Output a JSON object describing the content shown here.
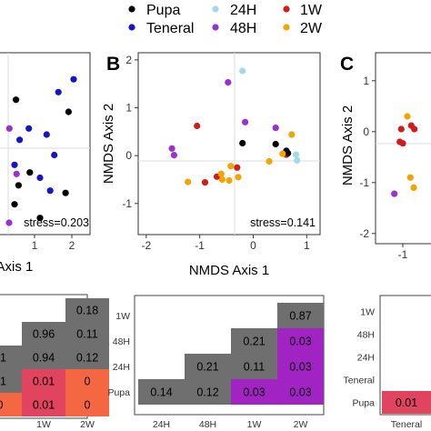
{
  "legend": {
    "placement": "top-center",
    "entries": [
      {
        "label": "Pupa",
        "color": "#000000"
      },
      {
        "label": "Teneral",
        "color": "#1515c8"
      },
      {
        "label": "24H",
        "color": "#a6d8ea"
      },
      {
        "label": "48H",
        "color": "#9b30d0"
      },
      {
        "label": "1W",
        "color": "#d01c1c"
      },
      {
        "label": "2W",
        "color": "#f0a500"
      }
    ]
  },
  "panel_labels": {
    "a": "",
    "b": "B",
    "c": "C"
  },
  "chart_data": [
    {
      "type": "scatter",
      "panel": "A",
      "xlabel": "NMDS Axis 1",
      "ylabel": "",
      "xticks": [
        1,
        2
      ],
      "xlim": [
        0.3,
        2.1
      ],
      "ylim": [
        -1.2,
        1.2
      ],
      "stress_label": "stress=0.203",
      "points": [
        {
          "group": "Teneral",
          "x": 1.78,
          "y": 0.85
        },
        {
          "group": "Teneral",
          "x": 1.48,
          "y": 0.68
        },
        {
          "group": "Teneral",
          "x": 1.25,
          "y": 0.12
        },
        {
          "group": "Teneral",
          "x": 1.4,
          "y": -0.15
        },
        {
          "group": "Teneral",
          "x": 0.9,
          "y": 0.2
        },
        {
          "group": "Teneral",
          "x": 0.72,
          "y": 0.05
        },
        {
          "group": "Teneral",
          "x": 1.12,
          "y": -0.45
        },
        {
          "group": "Teneral",
          "x": 0.62,
          "y": -0.28
        },
        {
          "group": "Teneral",
          "x": 1.32,
          "y": -0.62
        },
        {
          "group": "Pupa",
          "x": 1.68,
          "y": 0.42
        },
        {
          "group": "Pupa",
          "x": 1.62,
          "y": -0.65
        },
        {
          "group": "Pupa",
          "x": 1.12,
          "y": -0.98
        },
        {
          "group": "Pupa",
          "x": 0.62,
          "y": -0.8
        },
        {
          "group": "Pupa",
          "x": 0.7,
          "y": -0.55
        },
        {
          "group": "Pupa",
          "x": 0.92,
          "y": -0.38
        },
        {
          "group": "Pupa",
          "x": 0.65,
          "y": 0.58
        },
        {
          "group": "48H",
          "x": 0.52,
          "y": 0.2
        },
        {
          "group": "48H",
          "x": 0.66,
          "y": -0.4
        }
      ]
    },
    {
      "type": "scatter",
      "panel": "B",
      "xlabel": "NMDS Axis 1",
      "ylabel": "NMDS Axis 2",
      "xticks": [
        -2,
        -1,
        0,
        1
      ],
      "yticks": [
        -1,
        0,
        1,
        2
      ],
      "xlim": [
        -2.15,
        1.25
      ],
      "ylim": [
        -1.65,
        2.15
      ],
      "stress_label": "stress=0.141",
      "points": [
        {
          "group": "24H",
          "x": -0.2,
          "y": 1.77
        },
        {
          "group": "24H",
          "x": 0.82,
          "y": -0.1
        },
        {
          "group": "24H",
          "x": 0.8,
          "y": 0.02
        },
        {
          "group": "48H",
          "x": -0.47,
          "y": 1.53
        },
        {
          "group": "48H",
          "x": -0.15,
          "y": 0.7
        },
        {
          "group": "48H",
          "x": -1.52,
          "y": 0.15
        },
        {
          "group": "48H",
          "x": -1.48,
          "y": 0.01
        },
        {
          "group": "48H",
          "x": 0.42,
          "y": 0.58
        },
        {
          "group": "1W",
          "x": -1.05,
          "y": 0.62
        },
        {
          "group": "1W",
          "x": -0.3,
          "y": -0.25
        },
        {
          "group": "1W",
          "x": -0.68,
          "y": -0.44
        },
        {
          "group": "1W",
          "x": -0.9,
          "y": -0.56
        },
        {
          "group": "1W",
          "x": 0.62,
          "y": 0.02
        },
        {
          "group": "Pupa",
          "x": -0.2,
          "y": 0.26
        },
        {
          "group": "Pupa",
          "x": 0.42,
          "y": 0.24
        },
        {
          "group": "Pupa",
          "x": 0.62,
          "y": 0.1
        },
        {
          "group": "Pupa",
          "x": 0.65,
          "y": 0.05
        },
        {
          "group": "2W",
          "x": 0.72,
          "y": 0.44
        },
        {
          "group": "2W",
          "x": 0.55,
          "y": 0.04
        },
        {
          "group": "2W",
          "x": 0.3,
          "y": -0.12
        },
        {
          "group": "2W",
          "x": -0.42,
          "y": -0.22
        },
        {
          "group": "2W",
          "x": -0.6,
          "y": -0.38
        },
        {
          "group": "2W",
          "x": -0.58,
          "y": -0.5
        },
        {
          "group": "2W",
          "x": -0.28,
          "y": -0.45
        },
        {
          "group": "2W",
          "x": -0.45,
          "y": -0.52
        },
        {
          "group": "2W",
          "x": -1.22,
          "y": -0.55
        }
      ]
    },
    {
      "type": "scatter",
      "panel": "C",
      "xlabel": "",
      "ylabel": "NMDS Axis 2",
      "xticks": [
        -1
      ],
      "yticks": [
        -2,
        -1,
        0,
        1
      ],
      "xlim": [
        -1.9,
        0.2
      ],
      "ylim": [
        -2.2,
        1.55
      ],
      "points": [
        {
          "group": "48H",
          "x": -1.28,
          "y": -1.22
        },
        {
          "group": "1W",
          "x": -1.05,
          "y": 0.05
        },
        {
          "group": "1W",
          "x": -1.1,
          "y": -0.2
        },
        {
          "group": "1W",
          "x": -1.0,
          "y": -0.23
        },
        {
          "group": "1W",
          "x": -0.62,
          "y": 0.05
        },
        {
          "group": "1W",
          "x": -0.72,
          "y": 0.12
        },
        {
          "group": "2W",
          "x": -0.85,
          "y": 0.3
        },
        {
          "group": "2W",
          "x": -0.75,
          "y": -0.9
        },
        {
          "group": "2W",
          "x": -0.64,
          "y": -1.1
        }
      ]
    },
    {
      "type": "heatmap",
      "panel": "A-table",
      "x_labels": [
        "",
        "1W",
        "2W"
      ],
      "rows": [
        {
          "cells": [
            "",
            "",
            "0.18"
          ]
        },
        {
          "cells": [
            "",
            "0.96",
            "0.11"
          ]
        },
        {
          "cells": [
            "91",
            "0.94",
            "0.12"
          ]
        },
        {
          "cells": [
            "01",
            "0.01",
            "0"
          ]
        },
        {
          "cells": [
            "0",
            "0.01",
            "0"
          ]
        }
      ]
    },
    {
      "type": "heatmap",
      "panel": "B-table",
      "y_labels": [
        "1W",
        "48H",
        "24H",
        "Pupa"
      ],
      "x_labels": [
        "24H",
        "48H",
        "1W",
        "2W"
      ],
      "rows": [
        {
          "cells": [
            "",
            "",
            "",
            "0.87"
          ]
        },
        {
          "cells": [
            "",
            "",
            "0.21",
            "0.03"
          ]
        },
        {
          "cells": [
            "",
            "0.21",
            "0.11",
            "0.03"
          ]
        },
        {
          "cells": [
            "0.14",
            "0.12",
            "0.03",
            "0.03"
          ]
        }
      ]
    },
    {
      "type": "heatmap",
      "panel": "C-table",
      "y_labels": [
        "1W",
        "48H",
        "24H",
        "Teneral",
        "Pupa"
      ],
      "x_labels": [
        "Teneral",
        "24H"
      ],
      "rows": [
        {
          "cells": [
            "",
            ""
          ]
        },
        {
          "cells": [
            "",
            ""
          ]
        },
        {
          "cells": [
            "",
            ""
          ]
        },
        {
          "cells": [
            "",
            ""
          ]
        },
        {
          "cells": [
            "0.01",
            ""
          ]
        }
      ]
    }
  ]
}
